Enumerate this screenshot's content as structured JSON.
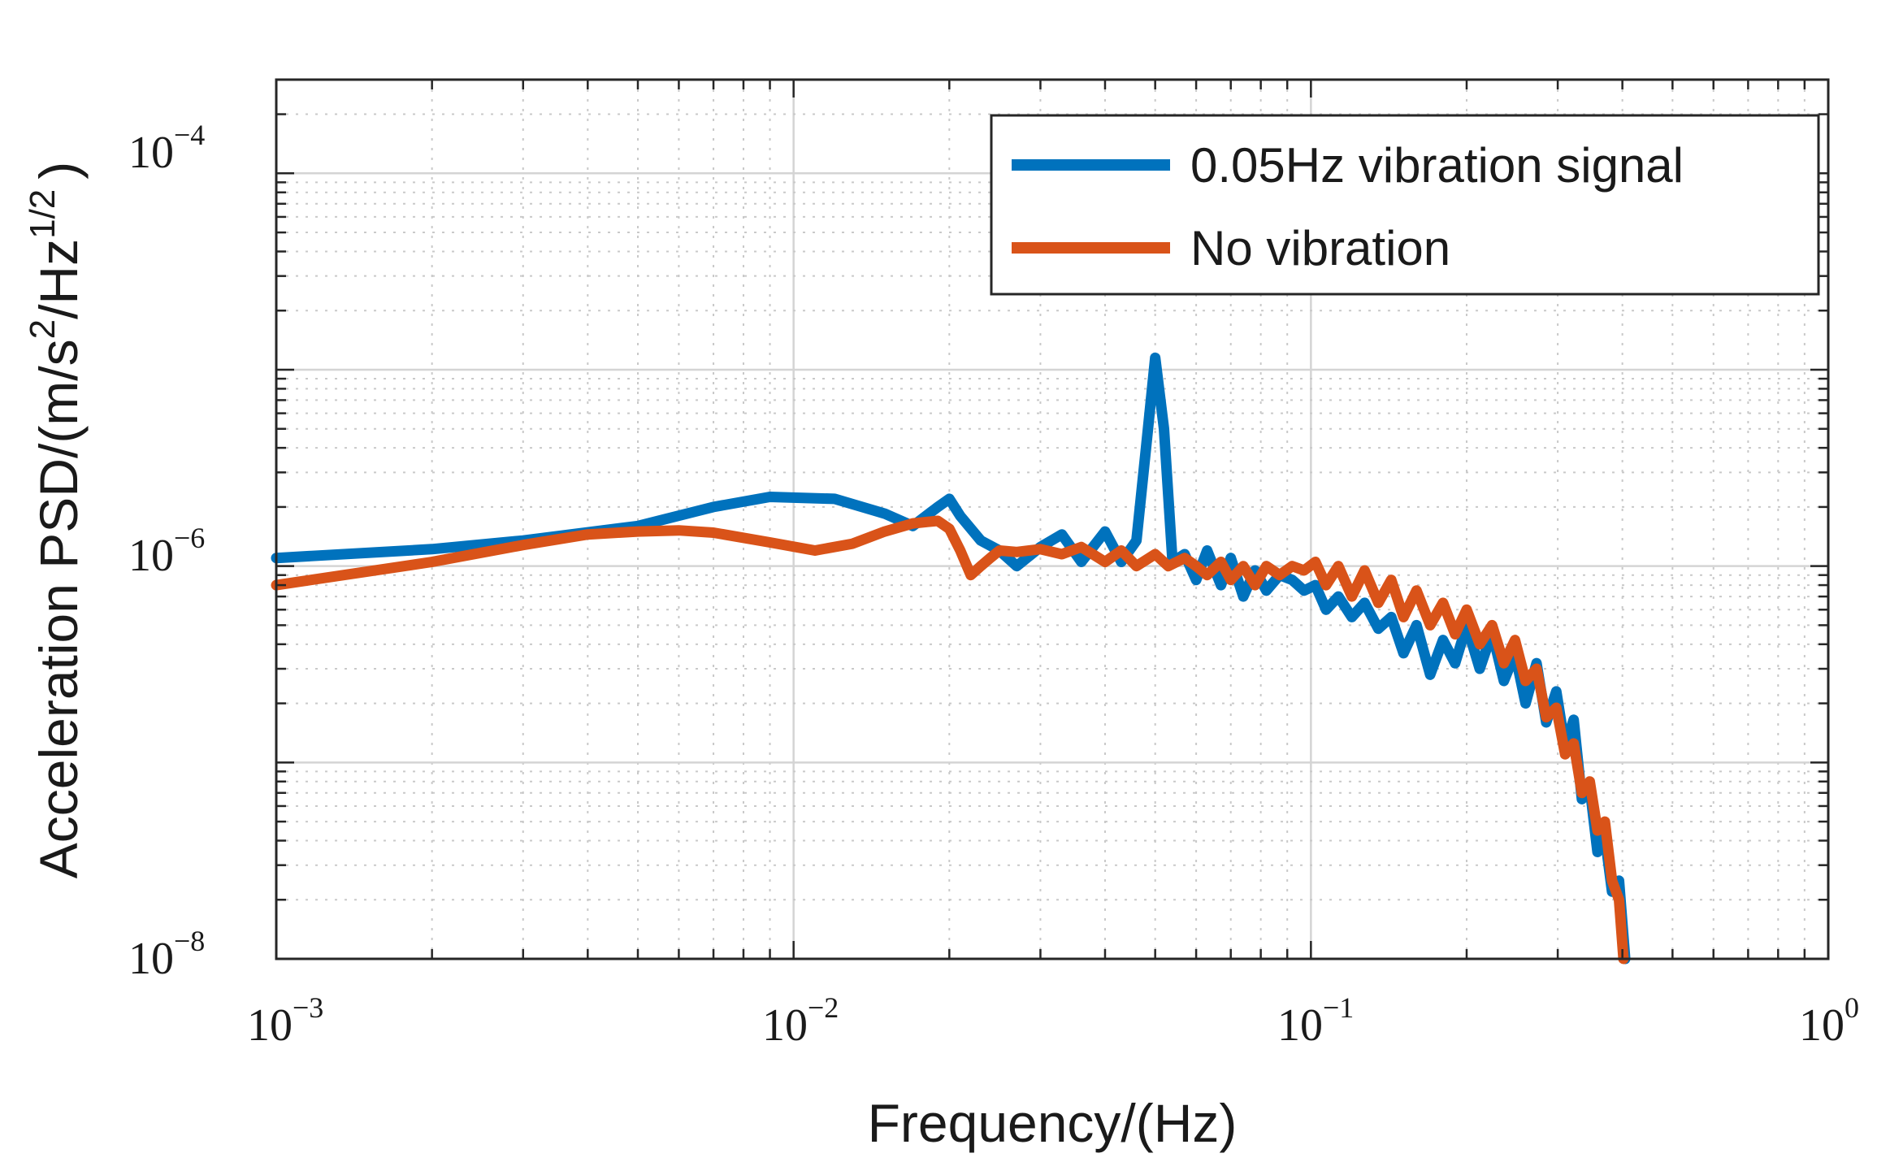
{
  "chart_data": {
    "type": "line",
    "title": "",
    "xlabel": "Frequency/(Hz)",
    "ylabel": {
      "prefix": "Acceleration PSD/(m/s",
      "sup1": "2",
      "middle": "/Hz",
      "sup2": "1/2",
      "suffix": ")"
    },
    "xscale": "log",
    "yscale": "log",
    "xlim": [
      0.001,
      1
    ],
    "ylim": [
      1e-08,
      0.0003
    ],
    "grid": true,
    "minor_grid": true,
    "legend_position": "top-right",
    "x_ticks": [
      {
        "base": "10",
        "exp": "−3",
        "value": 0.001
      },
      {
        "base": "10",
        "exp": "−2",
        "value": 0.01
      },
      {
        "base": "10",
        "exp": "−1",
        "value": 0.1
      },
      {
        "base": "10",
        "exp": "0",
        "value": 1
      }
    ],
    "y_ticks": [
      {
        "base": "10",
        "exp": "−4",
        "value": 0.0001
      },
      {
        "base": "10",
        "exp": "−6",
        "value": 1e-06
      },
      {
        "base": "10",
        "exp": "−8",
        "value": 1e-08
      }
    ],
    "series": [
      {
        "name": "0.05Hz vibration signal",
        "color": "#0072BD",
        "x": [
          0.001,
          0.002,
          0.003,
          0.005,
          0.007,
          0.009,
          0.012,
          0.015,
          0.017,
          0.019,
          0.02,
          0.021,
          0.023,
          0.025,
          0.027,
          0.03,
          0.033,
          0.036,
          0.04,
          0.043,
          0.046,
          0.048,
          0.05,
          0.052,
          0.054,
          0.057,
          0.06,
          0.063,
          0.067,
          0.07,
          0.074,
          0.078,
          0.082,
          0.087,
          0.092,
          0.097,
          0.102,
          0.107,
          0.113,
          0.12,
          0.127,
          0.135,
          0.143,
          0.151,
          0.16,
          0.17,
          0.18,
          0.19,
          0.2,
          0.212,
          0.224,
          0.236,
          0.248,
          0.26,
          0.273,
          0.285,
          0.298,
          0.31,
          0.322,
          0.334,
          0.346,
          0.358,
          0.37,
          0.382,
          0.394,
          0.405
        ],
        "y": [
          1.1e-06,
          1.22e-06,
          1.35e-06,
          1.6e-06,
          2e-06,
          2.25e-06,
          2.2e-06,
          1.85e-06,
          1.6e-06,
          2e-06,
          2.2e-06,
          1.8e-06,
          1.35e-06,
          1.2e-06,
          1e-06,
          1.25e-06,
          1.45e-06,
          1.05e-06,
          1.5e-06,
          1.05e-06,
          1.35e-06,
          4e-06,
          1.15e-05,
          5e-06,
          1.05e-06,
          1.15e-06,
          8.5e-07,
          1.2e-06,
          8e-07,
          1.1e-06,
          7e-07,
          9.5e-07,
          7.5e-07,
          9e-07,
          8.5e-07,
          7.5e-07,
          8e-07,
          6e-07,
          7e-07,
          5.5e-07,
          6.5e-07,
          4.8e-07,
          5.5e-07,
          3.6e-07,
          5e-07,
          2.8e-07,
          4.2e-07,
          3.2e-07,
          5e-07,
          3e-07,
          4.6e-07,
          2.6e-07,
          3.6e-07,
          2e-07,
          3.2e-07,
          1.6e-07,
          2.3e-07,
          1.2e-07,
          1.65e-07,
          6.5e-08,
          7.5e-08,
          3.5e-08,
          4.2e-08,
          2.2e-08,
          2.5e-08,
          1e-08
        ]
      },
      {
        "name": "No vibration",
        "color": "#D95319",
        "x": [
          0.001,
          0.002,
          0.003,
          0.004,
          0.005,
          0.006,
          0.007,
          0.009,
          0.011,
          0.013,
          0.015,
          0.017,
          0.019,
          0.02,
          0.021,
          0.022,
          0.023,
          0.024,
          0.025,
          0.027,
          0.03,
          0.033,
          0.036,
          0.04,
          0.043,
          0.046,
          0.05,
          0.053,
          0.057,
          0.06,
          0.063,
          0.067,
          0.07,
          0.074,
          0.078,
          0.082,
          0.087,
          0.092,
          0.097,
          0.102,
          0.107,
          0.113,
          0.12,
          0.127,
          0.135,
          0.143,
          0.151,
          0.16,
          0.17,
          0.18,
          0.19,
          0.2,
          0.212,
          0.224,
          0.236,
          0.248,
          0.26,
          0.273,
          0.285,
          0.298,
          0.31,
          0.322,
          0.334,
          0.346,
          0.358,
          0.37,
          0.382,
          0.394,
          0.402
        ],
        "y": [
          8e-07,
          1.05e-06,
          1.28e-06,
          1.45e-06,
          1.5e-06,
          1.52e-06,
          1.48e-06,
          1.32e-06,
          1.2e-06,
          1.3e-06,
          1.5e-06,
          1.65e-06,
          1.7e-06,
          1.55e-06,
          1.2e-06,
          9e-07,
          1e-06,
          1.1e-06,
          1.2e-06,
          1.18e-06,
          1.22e-06,
          1.15e-06,
          1.25e-06,
          1.05e-06,
          1.2e-06,
          1e-06,
          1.15e-06,
          1e-06,
          1.1e-06,
          1e-06,
          9e-07,
          1.05e-06,
          8.5e-07,
          1e-06,
          8e-07,
          1e-06,
          9e-07,
          1e-06,
          9.5e-07,
          1.05e-06,
          8e-07,
          1e-06,
          7e-07,
          9.5e-07,
          6.5e-07,
          8.5e-07,
          5.5e-07,
          7.5e-07,
          5e-07,
          6.5e-07,
          4.5e-07,
          6e-07,
          4e-07,
          5e-07,
          3.2e-07,
          4.2e-07,
          2.6e-07,
          3e-07,
          1.7e-07,
          1.9e-07,
          1.1e-07,
          1.25e-07,
          7e-08,
          8e-08,
          4.5e-08,
          5e-08,
          2.5e-08,
          2e-08,
          1e-08
        ]
      }
    ]
  }
}
